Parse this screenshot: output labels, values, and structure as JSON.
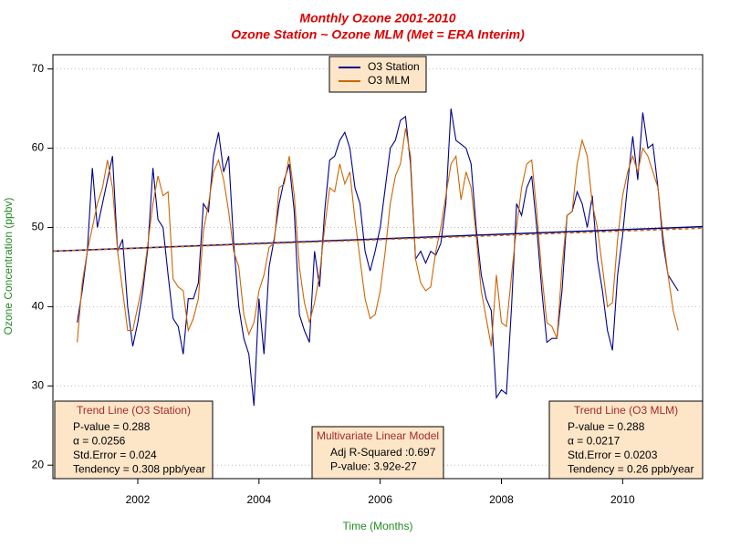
{
  "chart_data": {
    "type": "line",
    "title": "Monthly Ozone 2001-2010",
    "subtitle": "Ozone Station ~ Ozone MLM (Met = ERA Interim)",
    "x_label": "Time (Months)",
    "y_label": "Ozone Concentration (ppbv)",
    "xlim": [
      2000.6,
      2011.32
    ],
    "ylim": [
      18.3,
      71.8
    ],
    "xticks": [
      2002,
      2004,
      2006,
      2008,
      2010
    ],
    "yticks": [
      20,
      30,
      40,
      50,
      60,
      70
    ],
    "grid": true,
    "legend_position": "top",
    "x": [
      2001,
      2001.083,
      2001.167,
      2001.25,
      2001.333,
      2001.417,
      2001.5,
      2001.583,
      2001.667,
      2001.75,
      2001.833,
      2001.917,
      2002,
      2002.083,
      2002.167,
      2002.25,
      2002.333,
      2002.417,
      2002.5,
      2002.583,
      2002.667,
      2002.75,
      2002.833,
      2002.917,
      2003,
      2003.083,
      2003.167,
      2003.25,
      2003.333,
      2003.417,
      2003.5,
      2003.583,
      2003.667,
      2003.75,
      2003.833,
      2003.917,
      2004,
      2004.083,
      2004.167,
      2004.25,
      2004.333,
      2004.417,
      2004.5,
      2004.583,
      2004.667,
      2004.75,
      2004.833,
      2004.917,
      2005,
      2005.083,
      2005.167,
      2005.25,
      2005.333,
      2005.417,
      2005.5,
      2005.583,
      2005.667,
      2005.75,
      2005.833,
      2005.917,
      2006,
      2006.083,
      2006.167,
      2006.25,
      2006.333,
      2006.417,
      2006.5,
      2006.583,
      2006.667,
      2006.75,
      2006.833,
      2006.917,
      2007,
      2007.083,
      2007.167,
      2007.25,
      2007.333,
      2007.417,
      2007.5,
      2007.583,
      2007.667,
      2007.75,
      2007.833,
      2007.917,
      2008,
      2008.083,
      2008.167,
      2008.25,
      2008.333,
      2008.417,
      2008.5,
      2008.583,
      2008.667,
      2008.75,
      2008.833,
      2008.917,
      2009,
      2009.083,
      2009.167,
      2009.25,
      2009.333,
      2009.417,
      2009.5,
      2009.583,
      2009.667,
      2009.75,
      2009.833,
      2009.917,
      2010,
      2010.083,
      2010.167,
      2010.25,
      2010.333,
      2010.417,
      2010.5,
      2010.583,
      2010.667,
      2010.75,
      2010.833,
      2010.917
    ],
    "series": [
      {
        "name": "O3 Station",
        "color": "#00008b",
        "values": [
          38,
          42,
          47,
          57.5,
          50,
          53,
          56,
          59,
          47,
          48.5,
          40,
          35,
          38,
          42,
          47.5,
          57.5,
          51,
          50,
          44,
          38.5,
          37.5,
          34,
          41,
          41,
          43,
          53,
          52,
          59,
          62,
          57,
          59,
          48,
          40,
          36,
          34,
          27.5,
          41,
          34,
          45,
          48.5,
          53,
          56,
          58,
          52,
          39,
          37,
          35.5,
          47,
          42.5,
          52,
          58.5,
          59,
          61,
          62,
          60,
          55,
          53,
          47,
          44.5,
          47,
          50,
          55,
          60,
          61,
          63.5,
          64,
          58,
          46,
          47,
          45.5,
          47,
          46.5,
          48,
          53,
          65,
          61,
          60.5,
          60,
          58,
          50,
          44,
          41,
          39.5,
          28.5,
          29.5,
          29,
          40,
          53,
          51.5,
          55,
          56.5,
          50,
          42,
          35.5,
          36,
          36,
          42,
          51.5,
          52,
          54.5,
          53,
          50,
          54,
          46,
          42,
          37,
          34.5,
          44,
          49,
          55.5,
          61.5,
          56,
          64.5,
          60,
          60.5,
          55,
          48,
          44,
          43,
          42
        ]
      },
      {
        "name": "O3 MLM",
        "color": "#cc6600",
        "values": [
          35.5,
          43,
          47,
          50,
          53,
          55,
          58.5,
          55,
          47,
          42,
          37,
          37,
          40,
          43,
          48,
          53,
          56.5,
          54,
          54.5,
          43.5,
          42.5,
          42,
          37,
          38.5,
          41,
          49.5,
          53,
          57,
          58.5,
          56,
          52,
          47,
          45,
          39,
          36.5,
          38,
          42,
          44,
          47.5,
          48,
          55,
          55.5,
          59,
          54,
          45,
          40.5,
          38,
          40.5,
          44,
          50,
          55,
          54.5,
          58,
          55.5,
          57,
          51,
          46,
          41,
          38.5,
          39,
          42,
          47,
          53,
          56.5,
          58,
          62.5,
          59,
          46,
          43,
          42,
          42.5,
          47,
          50,
          54,
          58,
          59,
          53.5,
          57,
          55,
          49,
          42,
          38.5,
          35,
          44,
          38,
          37.5,
          44,
          50,
          55,
          58,
          58.5,
          52,
          44,
          38,
          37.5,
          36,
          45,
          51.5,
          52,
          58,
          61,
          59,
          53,
          50,
          45,
          40,
          40.5,
          48.5,
          54,
          57,
          59,
          57,
          60,
          59,
          57,
          55,
          49,
          44,
          39.5,
          37
        ]
      }
    ],
    "trend_lines": [
      {
        "color": "#00008b",
        "x": [
          2000.6,
          2011.32
        ],
        "values": [
          47.0,
          50.1
        ]
      },
      {
        "color": "#cc6600",
        "x": [
          2000.6,
          2011.32
        ],
        "values": [
          47.0,
          49.9
        ]
      }
    ],
    "annotations": [
      {
        "title": "Trend Line (O3 Station)",
        "lines": [
          "P-value = 0.288",
          "α = 0.0256",
          "Std.Error = 0.024",
          "Tendency = 0.308 ppb/year"
        ]
      },
      {
        "title": "Multivariate Linear Model",
        "lines": [
          "Adj R-Squared :0.697",
          "P-value: 3.92e-27"
        ]
      },
      {
        "title": "Trend Line (O3 MLM)",
        "lines": [
          "P-value = 0.288",
          "α = 0.0217",
          "Std.Error = 0.0203",
          "Tendency = 0.26 ppb/year"
        ]
      }
    ]
  }
}
